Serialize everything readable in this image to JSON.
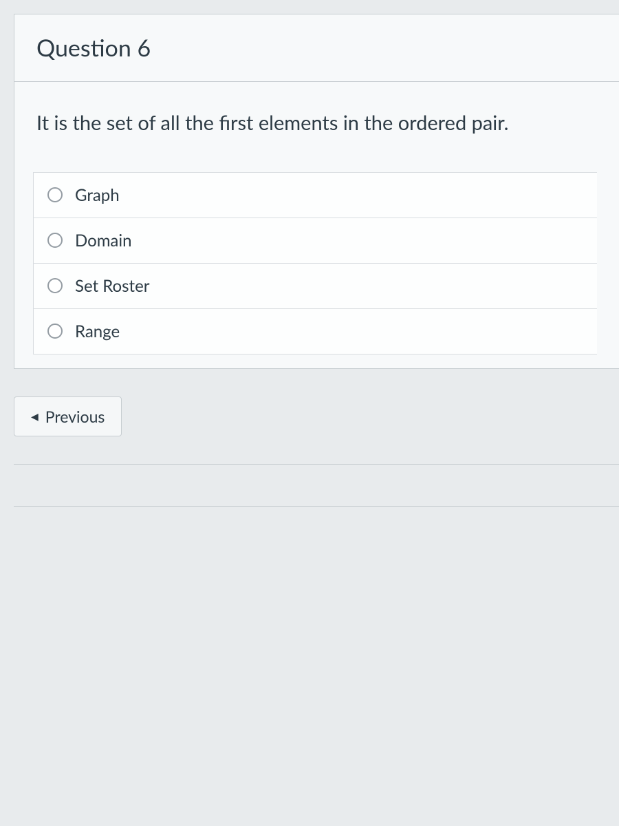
{
  "question": {
    "title": "Question 6",
    "prompt": "It is the set of all the first elements in the ordered pair.",
    "options": [
      {
        "label": "Graph"
      },
      {
        "label": "Domain"
      },
      {
        "label": "Set Roster"
      },
      {
        "label": "Range"
      }
    ]
  },
  "nav": {
    "previous_label": "Previous"
  },
  "colors": {
    "page_bg": "#e8ebed",
    "card_bg": "#f7f9fa",
    "border": "#c7cdd1",
    "text": "#2d3b45",
    "radio_border": "#949ca3",
    "option_border": "#d8dce0"
  }
}
